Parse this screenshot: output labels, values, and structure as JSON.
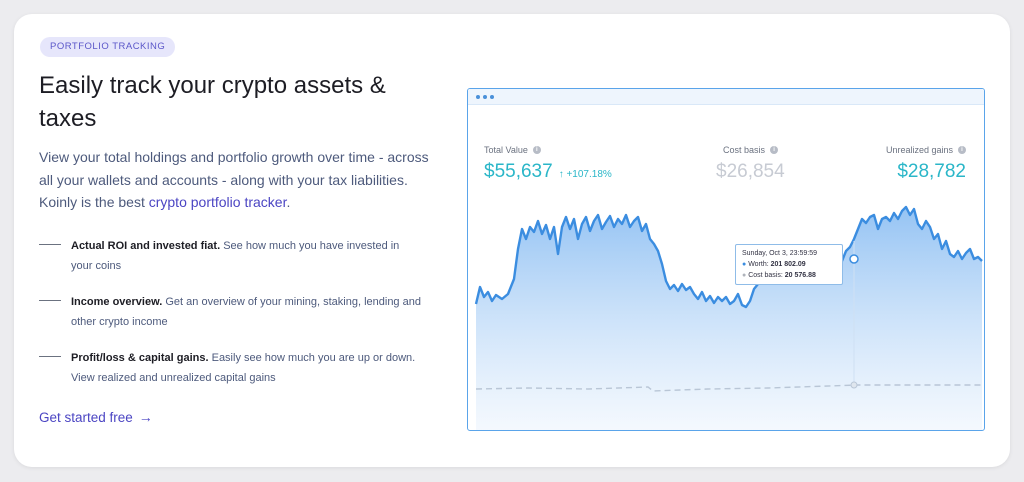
{
  "badge": "PORTFOLIO TRACKING",
  "title": "Easily track your crypto assets & taxes",
  "description": {
    "text": "View your total holdings and portfolio growth over time - across all your wallets and accounts - along with your tax liabilities. Koinly is the best ",
    "link": "crypto portfolio tracker",
    "end": "."
  },
  "features": [
    {
      "title": "Actual ROI and invested fiat.",
      "text": " See how much you have invested in your coins"
    },
    {
      "title": "Income overview.",
      "text": " Get an overview of your mining, staking, lending and other crypto income"
    },
    {
      "title": "Profit/loss & capital gains.",
      "text": " Easily see how much you are up or down. View realized and unrealized capital gains"
    }
  ],
  "cta": {
    "label": "Get started free",
    "icon": "arrow-right-icon"
  },
  "chart_window": {
    "stats": [
      {
        "label": "Total Value",
        "value": "$55,637",
        "change": "↑ +107.18%",
        "color": "#2ab6c8"
      },
      {
        "label": "Cost basis",
        "value": "$26,854",
        "color": "#c7cbd3"
      },
      {
        "label": "Unrealized gains",
        "value": "$28,782",
        "color": "#2ab6c8"
      }
    ],
    "tooltip": {
      "date": "Sunday, Oct 3, 23:59:59",
      "worth_label": "Worth:",
      "worth_value": "201 802.09",
      "cost_label": "Cost basis:",
      "cost_value": "20 576.88"
    }
  },
  "colors": {
    "accent": "#4b45c3",
    "teal": "#2ab6c8",
    "chart_line": "#3b8de0",
    "chart_fill": "#cfe3fa"
  }
}
